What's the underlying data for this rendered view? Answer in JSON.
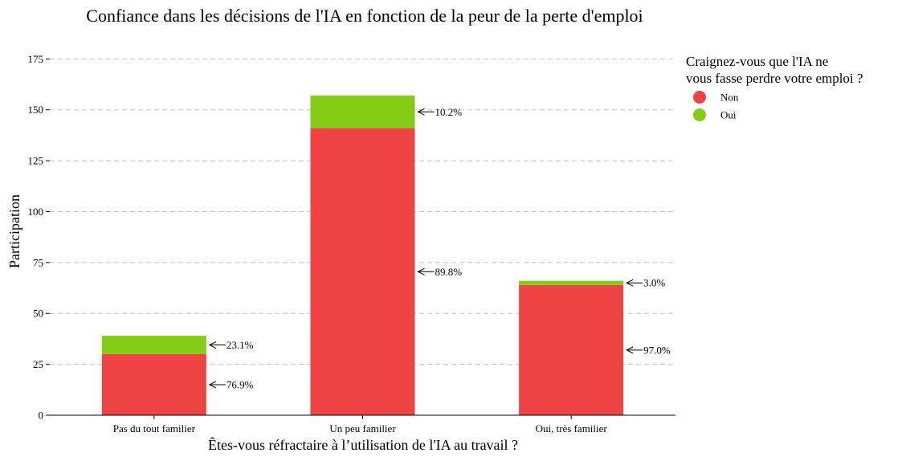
{
  "chart_data": {
    "type": "bar",
    "stacked": true,
    "title": "Confiance dans les décisions de l'IA en fonction de la peur de la perte d'emploi",
    "xlabel": "Êtes-vous réfractaire à l’utilisation de l'IA au travail ?",
    "ylabel": "Participation",
    "categories": [
      "Pas du tout familier",
      "Un peu familier",
      "Oui, très familier"
    ],
    "series": [
      {
        "name": "Non",
        "color": "#ef4444",
        "values": [
          30,
          141,
          64
        ],
        "labels": [
          "76.9%",
          "89.8%",
          "97.0%"
        ]
      },
      {
        "name": "Oui",
        "color": "#84cc16",
        "values": [
          9,
          16,
          2
        ],
        "labels": [
          "23.1%",
          "10.2%",
          "3.0%"
        ]
      }
    ],
    "ylim": [
      0,
      185
    ],
    "yticks": [
      0,
      25,
      50,
      75,
      100,
      125,
      150,
      175
    ],
    "grid": true,
    "legend": {
      "title": "Craignez-vous que l'IA ne\n vous fasse perdre votre emploi ?",
      "placement": "outside-right"
    }
  }
}
